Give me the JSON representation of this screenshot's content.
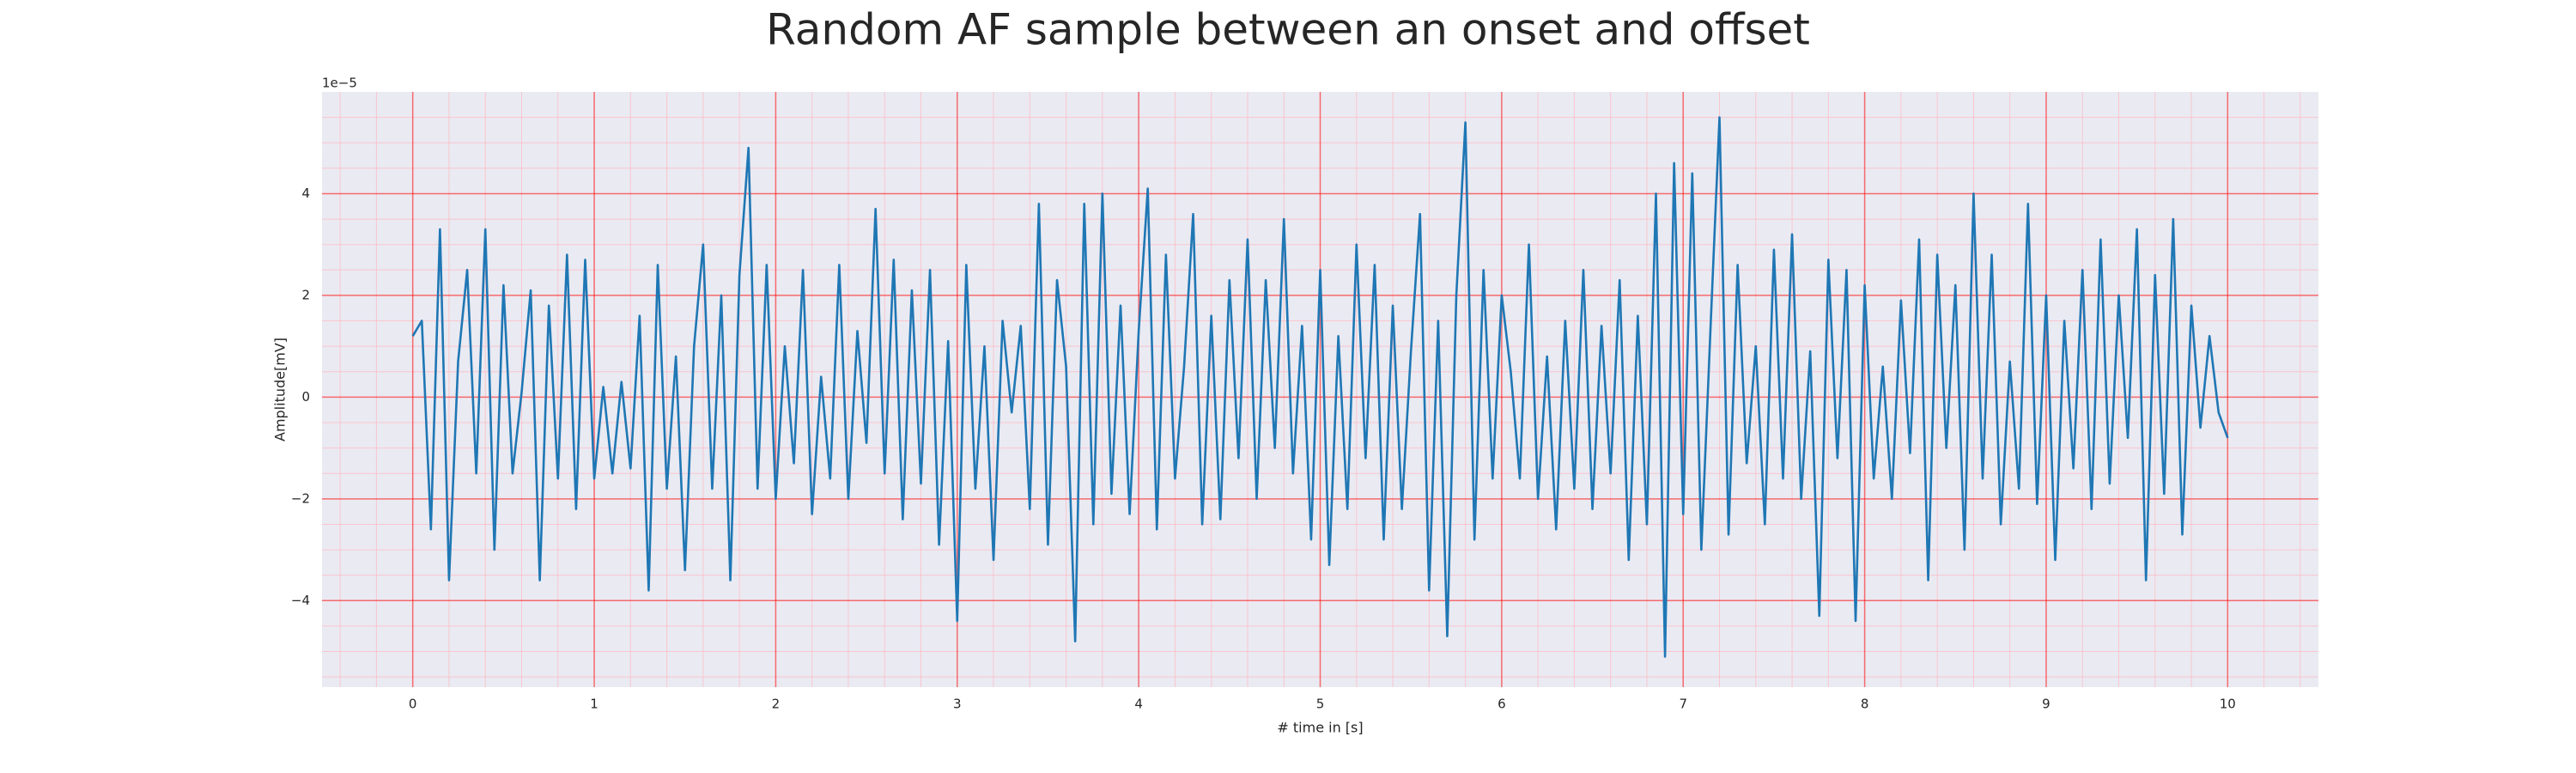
{
  "chart_data": {
    "type": "line",
    "title": "Random AF sample between an onset and offset",
    "xlabel": "# time in [s]",
    "ylabel": "Amplitude[mV]",
    "y_offset_label": "1e−5",
    "color": "#1f77b4",
    "grid": true,
    "grid_color": "#ff0000",
    "minor_grid_color": "#ffb6c1",
    "xlim": [
      -0.5,
      10.5
    ],
    "ylim": [
      -5.7,
      6.0
    ],
    "xticks": [
      0,
      1,
      2,
      3,
      4,
      5,
      6,
      7,
      8,
      9,
      10
    ],
    "yticks": [
      {
        "value": -4,
        "label": "−4"
      },
      {
        "value": -2,
        "label": "−2"
      },
      0,
      2,
      4
    ],
    "xminorticks": [
      -0.4,
      -0.2,
      0.2,
      0.4,
      0.6,
      0.8,
      1.2,
      1.4,
      1.6,
      1.8,
      2.2,
      2.4,
      2.6,
      2.8,
      3.2,
      3.4,
      3.6,
      3.8,
      4.2,
      4.4,
      4.6,
      4.8,
      5.2,
      5.4,
      5.6,
      5.8,
      6.2,
      6.4,
      6.6,
      6.8,
      7.2,
      7.4,
      7.6,
      7.8,
      8.2,
      8.4,
      8.6,
      8.8,
      9.2,
      9.4,
      9.6,
      9.8,
      10.2,
      10.4
    ],
    "yminorticks": [
      -5.5,
      -5,
      -4.5,
      -3.5,
      -3,
      -2.5,
      -1.5,
      -1,
      -0.5,
      0.5,
      1,
      1.5,
      2.5,
      3,
      3.5,
      4.5,
      5,
      5.5
    ],
    "x": [
      0,
      0.05,
      0.1,
      0.15,
      0.2,
      0.25,
      0.3,
      0.35,
      0.4,
      0.45,
      0.5,
      0.55,
      0.6,
      0.65,
      0.7,
      0.75,
      0.8,
      0.85,
      0.9,
      0.95,
      1,
      1.05,
      1.1,
      1.15,
      1.2,
      1.25,
      1.3,
      1.35,
      1.4,
      1.45,
      1.5,
      1.55,
      1.6,
      1.65,
      1.7,
      1.75,
      1.8,
      1.85,
      1.9,
      1.95,
      2,
      2.05,
      2.1,
      2.15,
      2.2,
      2.25,
      2.3,
      2.35,
      2.4,
      2.45,
      2.5,
      2.55,
      2.6,
      2.65,
      2.7,
      2.75,
      2.8,
      2.85,
      2.9,
      2.95,
      3,
      3.05,
      3.1,
      3.15,
      3.2,
      3.25,
      3.3,
      3.35,
      3.4,
      3.45,
      3.5,
      3.55,
      3.6,
      3.65,
      3.7,
      3.75,
      3.8,
      3.85,
      3.9,
      3.95,
      4,
      4.05,
      4.1,
      4.15,
      4.2,
      4.25,
      4.3,
      4.35,
      4.4,
      4.45,
      4.5,
      4.55,
      4.6,
      4.65,
      4.7,
      4.75,
      4.8,
      4.85,
      4.9,
      4.95,
      5,
      5.05,
      5.1,
      5.15,
      5.2,
      5.25,
      5.3,
      5.35,
      5.4,
      5.45,
      5.5,
      5.55,
      5.6,
      5.65,
      5.7,
      5.75,
      5.8,
      5.85,
      5.9,
      5.95,
      6,
      6.05,
      6.1,
      6.15,
      6.2,
      6.25,
      6.3,
      6.35,
      6.4,
      6.45,
      6.5,
      6.55,
      6.6,
      6.65,
      6.7,
      6.75,
      6.8,
      6.85,
      6.9,
      6.95,
      7,
      7.05,
      7.1,
      7.15,
      7.2,
      7.25,
      7.3,
      7.35,
      7.4,
      7.45,
      7.5,
      7.55,
      7.6,
      7.65,
      7.7,
      7.75,
      7.8,
      7.85,
      7.9,
      7.95,
      8,
      8.05,
      8.1,
      8.15,
      8.2,
      8.25,
      8.3,
      8.35,
      8.4,
      8.45,
      8.5,
      8.55,
      8.6,
      8.65,
      8.7,
      8.75,
      8.8,
      8.85,
      8.9,
      8.95,
      9,
      9.05,
      9.1,
      9.15,
      9.2,
      9.25,
      9.3,
      9.35,
      9.4,
      9.45,
      9.5,
      9.55,
      9.6,
      9.65,
      9.7,
      9.75,
      9.8,
      9.85,
      9.9,
      9.95,
      10
    ],
    "values": [
      1.2,
      1.5,
      -2.6,
      3.3,
      -3.6,
      0.7,
      2.5,
      -1.5,
      3.3,
      -3.0,
      2.2,
      -1.5,
      0.1,
      2.1,
      -3.6,
      1.8,
      -1.6,
      2.8,
      -2.2,
      2.7,
      -1.6,
      0.2,
      -1.5,
      0.3,
      -1.4,
      1.6,
      -3.8,
      2.6,
      -1.8,
      0.8,
      -3.4,
      1.0,
      3.0,
      -1.8,
      2.0,
      -3.6,
      2.4,
      4.9,
      -1.8,
      2.6,
      -2.0,
      1.0,
      -1.3,
      2.5,
      -2.3,
      0.4,
      -1.6,
      2.6,
      -2.0,
      1.3,
      -0.9,
      3.7,
      -1.5,
      2.7,
      -2.4,
      2.1,
      -1.7,
      2.5,
      -2.9,
      1.1,
      -4.4,
      2.6,
      -1.8,
      1.0,
      -3.2,
      1.5,
      -0.3,
      1.4,
      -2.2,
      3.8,
      -2.9,
      2.3,
      0.6,
      -4.8,
      3.8,
      -2.5,
      4.0,
      -1.9,
      1.8,
      -2.3,
      1.3,
      4.1,
      -2.6,
      2.8,
      -1.6,
      0.6,
      3.6,
      -2.5,
      1.6,
      -2.4,
      2.3,
      -1.2,
      3.1,
      -2.0,
      2.3,
      -1.0,
      3.5,
      -1.5,
      1.4,
      -2.8,
      2.5,
      -3.3,
      1.2,
      -2.2,
      3.0,
      -1.2,
      2.6,
      -2.8,
      1.8,
      -2.2,
      0.9,
      3.6,
      -3.8,
      1.5,
      -4.7,
      2.0,
      5.4,
      -2.8,
      2.5,
      -1.6,
      2.0,
      0.5,
      -1.6,
      3.0,
      -2.0,
      0.8,
      -2.6,
      1.5,
      -1.8,
      2.5,
      -2.2,
      1.4,
      -1.5,
      2.3,
      -3.2,
      1.6,
      -2.5,
      4.0,
      -5.1,
      4.6,
      -2.3,
      4.4,
      -3.0,
      1.3,
      5.5,
      -2.7,
      2.6,
      -1.3,
      1.0,
      -2.5,
      2.9,
      -1.6,
      3.2,
      -2.0,
      0.9,
      -4.3,
      2.7,
      -1.2,
      2.5,
      -4.4,
      2.2,
      -1.6,
      0.6,
      -2.0,
      1.9,
      -1.1,
      3.1,
      -3.6,
      2.8,
      -1.0,
      2.2,
      -3.0,
      4.0,
      -1.6,
      2.8,
      -2.5,
      0.7,
      -1.8,
      3.8,
      -2.1,
      2.0,
      -3.2,
      1.5,
      -1.4,
      2.5,
      -2.2,
      3.1,
      -1.7,
      2.0,
      -0.8,
      3.3,
      -3.6,
      2.4,
      -1.9,
      3.5,
      -2.7,
      1.8,
      -0.6,
      1.2,
      -0.3,
      -0.8
    ]
  }
}
